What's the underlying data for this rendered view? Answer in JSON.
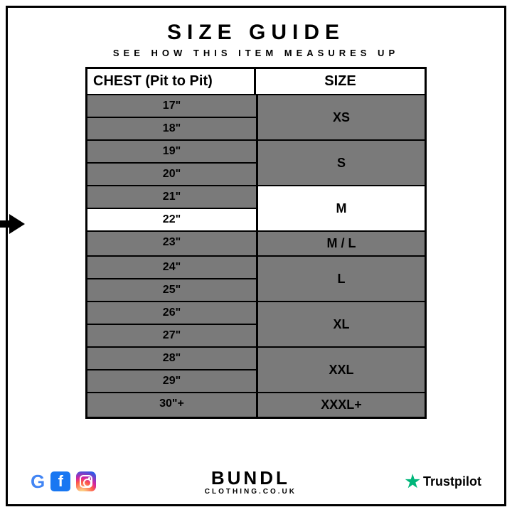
{
  "title": "SIZE GUIDE",
  "subtitle": "SEE HOW THIS ITEM MEASURES UP",
  "columns": {
    "chest": "CHEST (Pit to Pit)",
    "size": "SIZE"
  },
  "highlighted_measurement": "22\"",
  "highlighted_size": "M",
  "colors": {
    "cell_bg": "#7a7a7a",
    "border": "#000000",
    "highlight_bg": "#ffffff",
    "text": "#000000"
  },
  "groups": [
    {
      "measurements": [
        "17\"",
        "18\""
      ],
      "size": "XS",
      "highlight": false
    },
    {
      "measurements": [
        "19\"",
        "20\""
      ],
      "size": "S",
      "highlight": false
    },
    {
      "measurements": [
        "21\"",
        "22\""
      ],
      "size": "M",
      "highlight": true,
      "highlight_index": 1
    },
    {
      "measurements": [
        "23\""
      ],
      "size": "M / L",
      "highlight": false,
      "single": true
    },
    {
      "measurements": [
        "24\"",
        "25\""
      ],
      "size": "L",
      "highlight": false
    },
    {
      "measurements": [
        "26\"",
        "27\""
      ],
      "size": "XL",
      "highlight": false
    },
    {
      "measurements": [
        "28\"",
        "29\""
      ],
      "size": "XXL",
      "highlight": false
    },
    {
      "measurements": [
        "30\"+"
      ],
      "size": "XXXL+",
      "highlight": false,
      "single": true
    }
  ],
  "brand": {
    "name": "BUNDL",
    "domain": "CLOTHING.CO.UK"
  },
  "socials": {
    "google": "G",
    "facebook": "f",
    "instagram": "ig"
  },
  "trustpilot": "Trustpilot"
}
